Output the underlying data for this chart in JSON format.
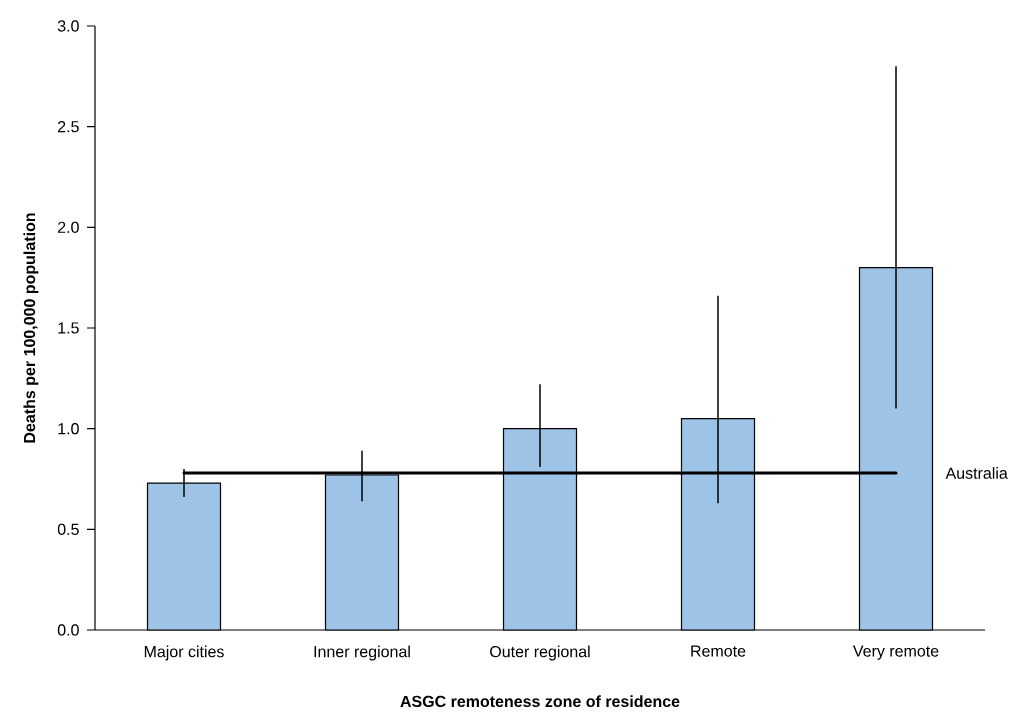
{
  "chart_data": {
    "type": "bar",
    "xlabel": "ASGC remoteness zone of residence",
    "ylabel": "Deaths per 100,000 population",
    "categories": [
      "Major cities",
      "Inner regional",
      "Outer regional",
      "Remote",
      "Very remote"
    ],
    "values": [
      0.73,
      0.77,
      1.0,
      1.05,
      1.8
    ],
    "errors": [
      [
        0.66,
        0.8
      ],
      [
        0.64,
        0.89
      ],
      [
        0.81,
        1.22
      ],
      [
        0.63,
        1.66
      ],
      [
        1.1,
        2.8
      ]
    ],
    "color": "#9dc3e6",
    "ylim": [
      0,
      3.0
    ],
    "yticks": [
      {
        "value": 0,
        "label": "0.0"
      },
      {
        "value": 0.5,
        "label": "0.5"
      },
      {
        "value": 1.0,
        "label": "1.0"
      },
      {
        "value": 1.5,
        "label": "1.5"
      },
      {
        "value": 2.0,
        "label": "2.0"
      },
      {
        "value": 2.5,
        "label": "2.5"
      },
      {
        "value": 3.0,
        "label": "3.0"
      }
    ],
    "ref_lines": [
      {
        "axis": "y",
        "value": 0.78,
        "label": "Australia",
        "color": "#000000"
      }
    ],
    "grid": false
  }
}
